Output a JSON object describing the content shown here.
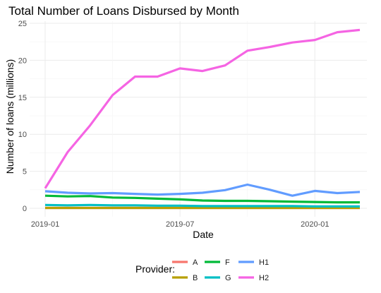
{
  "chart_data": {
    "type": "line",
    "title": "Total Number of Loans Disbursed by Month",
    "xlabel": "Date",
    "ylabel": "Number of loans (millions)",
    "x": [
      "2019-01",
      "2019-02",
      "2019-03",
      "2019-04",
      "2019-05",
      "2019-06",
      "2019-07",
      "2019-08",
      "2019-09",
      "2019-10",
      "2019-11",
      "2019-12",
      "2020-01",
      "2020-02",
      "2020-03"
    ],
    "x_ticks": [
      "2019-01",
      "2019-07",
      "2020-01"
    ],
    "y_ticks": [
      "0",
      "5",
      "10",
      "15",
      "20",
      "25"
    ],
    "ylim": [
      0,
      25
    ],
    "grid": true,
    "legend": {
      "title": "Provider:",
      "placement": "bottom"
    },
    "series": [
      {
        "name": "A",
        "color": "#F8766D",
        "values": [
          0.05,
          0.05,
          0.05,
          0.05,
          0.05,
          0.05,
          0.05,
          0.05,
          0.05,
          0.05,
          0.05,
          0.05,
          0.05,
          0.05,
          0.05
        ]
      },
      {
        "name": "B",
        "color": "#B79F00",
        "values": [
          0.05,
          0.05,
          0.05,
          0.05,
          0.05,
          0.05,
          0.05,
          0.05,
          0.05,
          0.05,
          0.05,
          0.05,
          0.05,
          0.05,
          0.05
        ]
      },
      {
        "name": "F",
        "color": "#00BA38",
        "values": [
          1.7,
          1.6,
          1.65,
          1.45,
          1.4,
          1.3,
          1.2,
          1.05,
          1.0,
          1.0,
          0.95,
          0.9,
          0.85,
          0.8,
          0.8
        ]
      },
      {
        "name": "G",
        "color": "#00BFC4",
        "values": [
          0.45,
          0.4,
          0.45,
          0.4,
          0.4,
          0.35,
          0.35,
          0.3,
          0.3,
          0.3,
          0.3,
          0.3,
          0.25,
          0.25,
          0.25
        ]
      },
      {
        "name": "H1",
        "color": "#619CFF",
        "values": [
          2.3,
          2.1,
          2.0,
          2.05,
          1.95,
          1.85,
          1.95,
          2.1,
          2.45,
          3.2,
          2.5,
          1.7,
          2.35,
          2.05,
          2.2
        ]
      },
      {
        "name": "H2",
        "color": "#F564E3",
        "values": [
          2.7,
          7.6,
          11.2,
          15.3,
          17.8,
          17.8,
          18.9,
          18.55,
          19.3,
          21.3,
          21.8,
          22.4,
          22.75,
          23.8,
          24.1
        ]
      }
    ]
  }
}
